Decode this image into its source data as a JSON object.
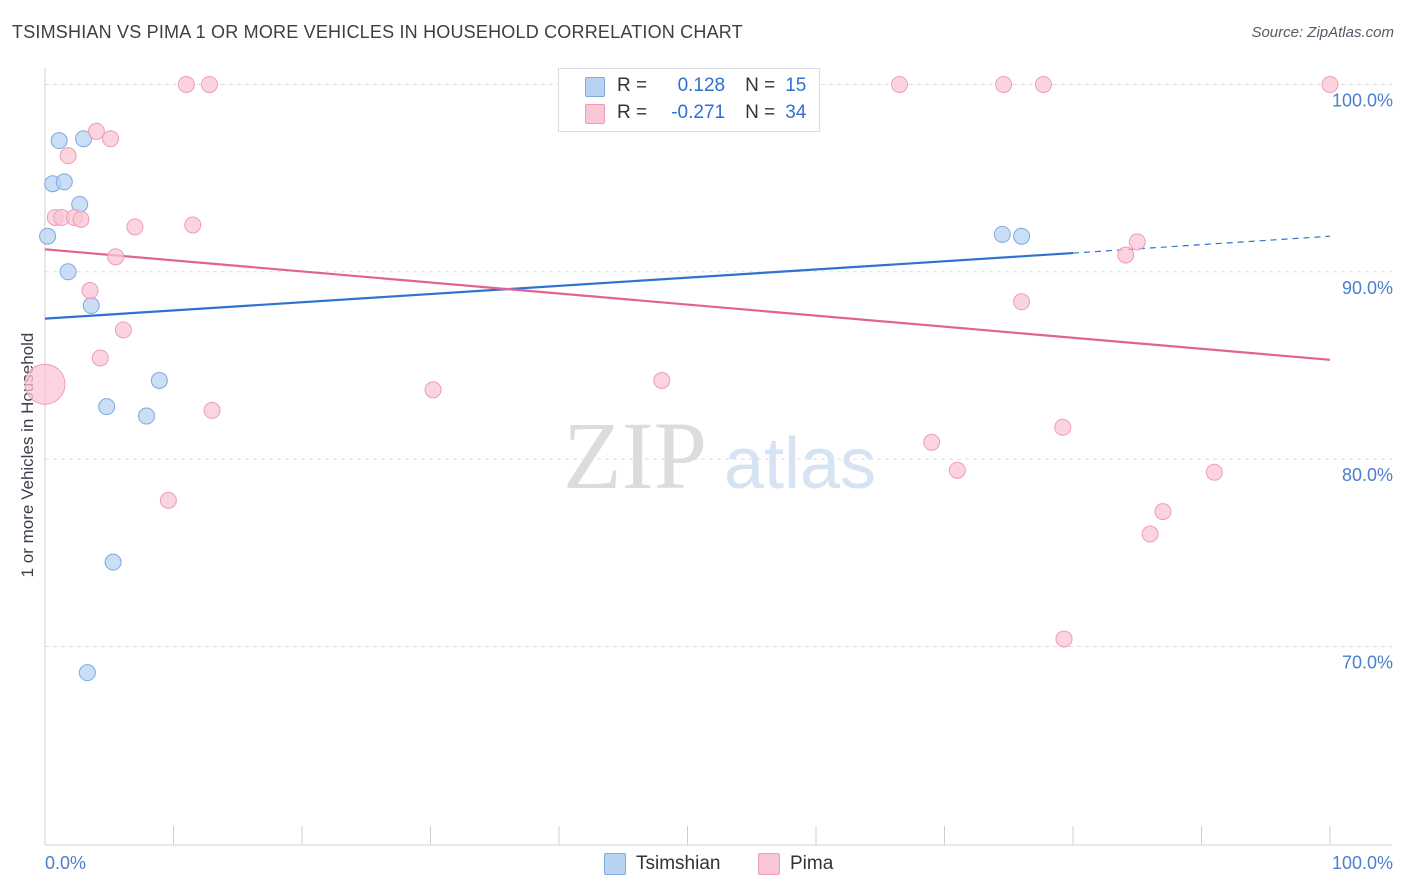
{
  "title": "TSIMSHIAN VS PIMA 1 OR MORE VEHICLES IN HOUSEHOLD CORRELATION CHART",
  "source": "Source: ZipAtlas.com",
  "watermark": {
    "zip": "ZIP",
    "atlas": "atlas"
  },
  "legend": {
    "r_label": "R =",
    "n_label": "N =",
    "series": [
      {
        "name": "Tsimshian",
        "r": "0.128",
        "n": "15"
      },
      {
        "name": "Pima",
        "r": "-0.271",
        "n": "34"
      }
    ]
  },
  "colors": {
    "tsimshian_fill": "#b8d3f2",
    "tsimshian_stroke": "#7fa9df",
    "tsimshian_line": "#2f73d0",
    "pima_fill": "#f9c6d6",
    "pima_stroke": "#ef9cb7",
    "pima_line": "#e0648f",
    "axis_text": "#4a7fcf"
  },
  "chart_data": {
    "type": "scatter",
    "title": "TSIMSHIAN VS PIMA 1 OR MORE VEHICLES IN HOUSEHOLD CORRELATION CHART",
    "xlabel": "",
    "ylabel": "1 or more Vehicles in Household",
    "xlim": [
      0,
      100
    ],
    "ylim": [
      59.4,
      101.2
    ],
    "x_tick_labels": [
      "0.0%",
      "100.0%"
    ],
    "y_ticks": [
      70,
      80,
      90,
      100
    ],
    "y_tick_labels": [
      "70.0%",
      "80.0%",
      "90.0%",
      "100.0%"
    ],
    "grid": true,
    "series": [
      {
        "name": "Tsimshian",
        "points": [
          {
            "x": 0.2,
            "y": 91.9
          },
          {
            "x": 0.6,
            "y": 94.7
          },
          {
            "x": 1.1,
            "y": 97.0
          },
          {
            "x": 1.5,
            "y": 94.8
          },
          {
            "x": 1.8,
            "y": 90.0
          },
          {
            "x": 2.7,
            "y": 93.6
          },
          {
            "x": 3.0,
            "y": 97.1
          },
          {
            "x": 3.6,
            "y": 88.2
          },
          {
            "x": 4.8,
            "y": 82.8
          },
          {
            "x": 5.3,
            "y": 74.5
          },
          {
            "x": 7.9,
            "y": 82.3
          },
          {
            "x": 8.9,
            "y": 84.2
          },
          {
            "x": 3.3,
            "y": 68.6
          },
          {
            "x": 74.5,
            "y": 92.0
          },
          {
            "x": 76.0,
            "y": 91.9
          }
        ],
        "trend": {
          "x0": 0,
          "y0": 87.5,
          "x1": 80,
          "y1": 91.0,
          "dashed_to_x": 100,
          "dashed_to_y": 91.9
        }
      },
      {
        "name": "Pima",
        "points": [
          {
            "x": 0.0,
            "y": 84.0
          },
          {
            "x": 0.8,
            "y": 92.9
          },
          {
            "x": 1.3,
            "y": 92.9
          },
          {
            "x": 1.8,
            "y": 96.2
          },
          {
            "x": 2.3,
            "y": 92.9
          },
          {
            "x": 2.8,
            "y": 92.8
          },
          {
            "x": 3.5,
            "y": 89.0
          },
          {
            "x": 4.0,
            "y": 97.5
          },
          {
            "x": 4.3,
            "y": 85.4
          },
          {
            "x": 5.1,
            "y": 97.1
          },
          {
            "x": 5.5,
            "y": 90.8
          },
          {
            "x": 6.1,
            "y": 86.9
          },
          {
            "x": 7.0,
            "y": 92.4
          },
          {
            "x": 9.6,
            "y": 77.8
          },
          {
            "x": 11.0,
            "y": 100.0
          },
          {
            "x": 11.5,
            "y": 92.5
          },
          {
            "x": 12.8,
            "y": 100.0
          },
          {
            "x": 13.0,
            "y": 82.6
          },
          {
            "x": 30.2,
            "y": 83.7
          },
          {
            "x": 48.0,
            "y": 84.2
          },
          {
            "x": 66.5,
            "y": 100.0
          },
          {
            "x": 69.0,
            "y": 80.9
          },
          {
            "x": 71.0,
            "y": 79.4
          },
          {
            "x": 74.6,
            "y": 100.0
          },
          {
            "x": 76.0,
            "y": 88.4
          },
          {
            "x": 77.7,
            "y": 100.0
          },
          {
            "x": 79.2,
            "y": 81.7
          },
          {
            "x": 79.3,
            "y": 70.4
          },
          {
            "x": 84.1,
            "y": 90.9
          },
          {
            "x": 85.0,
            "y": 91.6
          },
          {
            "x": 86.0,
            "y": 76.0
          },
          {
            "x": 87.0,
            "y": 77.2
          },
          {
            "x": 91.0,
            "y": 79.3
          },
          {
            "x": 100.0,
            "y": 100.0
          }
        ],
        "trend": {
          "x0": 0,
          "y0": 91.2,
          "x1": 100,
          "y1": 85.3
        }
      }
    ]
  }
}
